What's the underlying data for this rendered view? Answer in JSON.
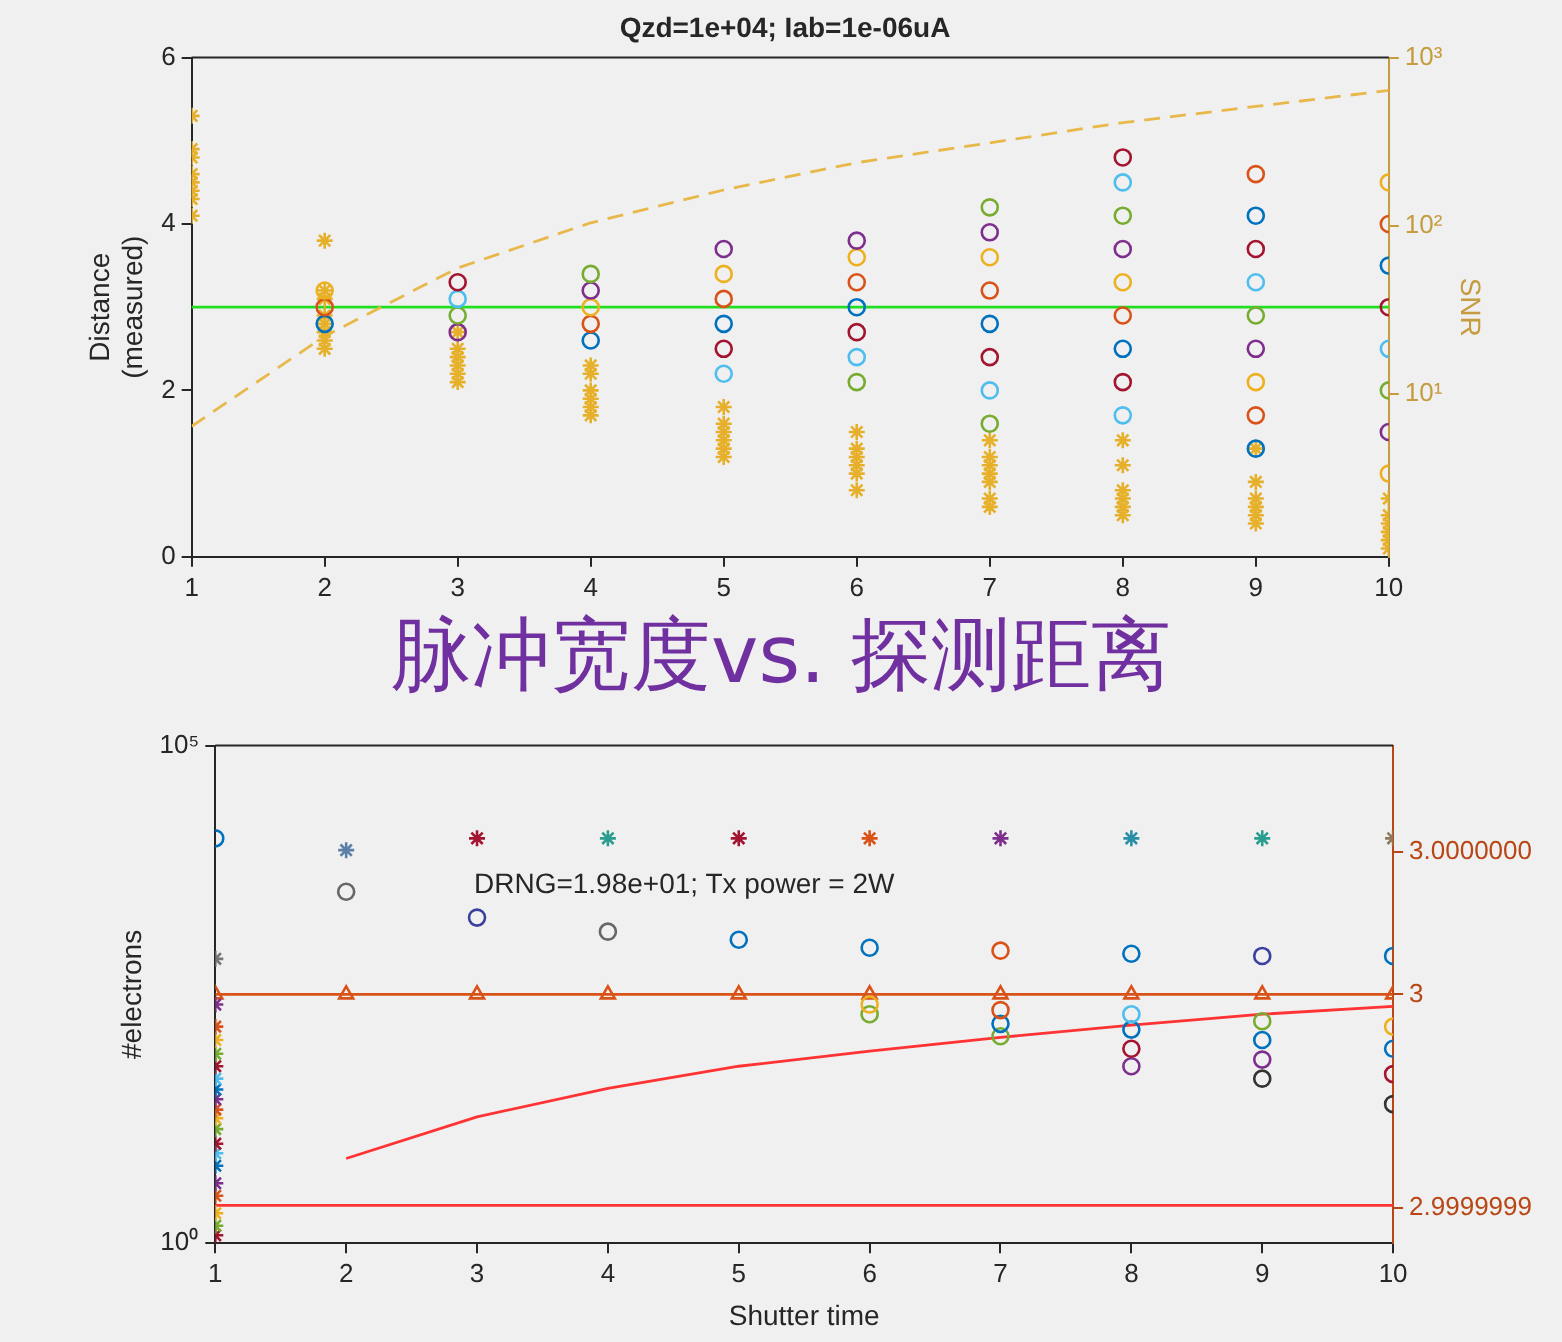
{
  "chart_data": [
    {
      "type": "scatter",
      "title": "Qzd=1e+04; Iab=1e-06uA",
      "ylabel": "Distance\n(measured)",
      "y2label": "SNR",
      "xlim": [
        1,
        10
      ],
      "xticks": [
        1,
        2,
        3,
        4,
        5,
        6,
        7,
        8,
        9,
        10
      ],
      "ylim": [
        0,
        6
      ],
      "yticks": [
        0,
        2,
        4,
        6
      ],
      "y2lim": [
        1.07,
        1000
      ],
      "y2ticks": [
        {
          "value": 10,
          "label": "10¹"
        },
        {
          "value": 100,
          "label": "10²"
        },
        {
          "value": 1000,
          "label": "10³"
        }
      ],
      "log": "y2",
      "ref_lines": [
        {
          "axis": "y",
          "value": 3,
          "color": "#22dd22"
        }
      ],
      "series": [
        {
          "type": "scatter",
          "marker": "circle",
          "x": [
            2,
            2,
            2,
            3,
            3,
            3,
            3,
            4,
            4,
            4,
            4,
            4,
            5,
            5,
            5,
            5,
            5,
            5,
            6,
            6,
            6,
            6,
            6,
            6,
            6,
            7,
            7,
            7,
            7,
            7,
            7,
            7,
            7,
            8,
            8,
            8,
            8,
            8,
            8,
            8,
            8,
            8,
            9,
            9,
            9,
            9,
            9,
            9,
            9,
            9,
            9,
            10,
            10,
            10,
            10,
            10,
            10,
            10,
            10
          ],
          "values": [
            2.8,
            3.0,
            3.2,
            2.7,
            2.9,
            3.1,
            3.3,
            2.6,
            2.8,
            3.0,
            3.2,
            3.4,
            2.2,
            2.5,
            2.8,
            3.1,
            3.4,
            3.7,
            2.1,
            2.4,
            2.7,
            3.0,
            3.3,
            3.6,
            3.8,
            1.6,
            2.0,
            2.4,
            2.8,
            3.2,
            3.6,
            3.9,
            4.2,
            1.7,
            2.1,
            2.5,
            2.9,
            3.3,
            3.7,
            4.1,
            4.5,
            4.8,
            1.3,
            1.7,
            2.1,
            2.5,
            2.9,
            3.3,
            3.7,
            4.1,
            4.6,
            1.0,
            1.5,
            2.0,
            2.5,
            3.0,
            3.5,
            4.0,
            4.5
          ],
          "colors": [
            "#0072bd",
            "#d95319",
            "#edb120",
            "#7e2f8e",
            "#77ac30",
            "#4dbeee",
            "#a2142f",
            "#0072bd",
            "#d95319",
            "#edb120",
            "#7e2f8e",
            "#77ac30",
            "#4dbeee",
            "#a2142f",
            "#0072bd",
            "#d95319",
            "#edb120",
            "#7e2f8e",
            "#77ac30",
            "#4dbeee",
            "#a2142f",
            "#0072bd",
            "#d95319",
            "#edb120",
            "#7e2f8e",
            "#77ac30",
            "#4dbeee",
            "#a2142f",
            "#0072bd",
            "#d95319",
            "#edb120",
            "#7e2f8e",
            "#77ac30",
            "#4dbeee",
            "#a2142f",
            "#0072bd",
            "#d95319",
            "#edb120",
            "#7e2f8e",
            "#77ac30",
            "#4dbeee",
            "#a2142f",
            "#0072bd",
            "#d95319",
            "#edb120",
            "#7e2f8e",
            "#77ac30",
            "#4dbeee",
            "#a2142f",
            "#0072bd",
            "#d95319",
            "#edb120",
            "#7e2f8e",
            "#77ac30",
            "#4dbeee",
            "#a2142f",
            "#0072bd",
            "#d95319",
            "#edb120"
          ]
        },
        {
          "type": "scatter",
          "marker": "cross",
          "color": "#e6b02a",
          "x": [
            1,
            1,
            1,
            1,
            1,
            1,
            1,
            1,
            2,
            2,
            2,
            2,
            2,
            2,
            2,
            2,
            3,
            3,
            3,
            3,
            3,
            3,
            4,
            4,
            4,
            4,
            4,
            4,
            5,
            5,
            5,
            5,
            5,
            5,
            6,
            6,
            6,
            6,
            6,
            6,
            7,
            7,
            7,
            7,
            7,
            7,
            7,
            8,
            8,
            8,
            8,
            8,
            8,
            9,
            9,
            9,
            9,
            9,
            9,
            10,
            10,
            10,
            10,
            10,
            10
          ],
          "values": [
            5.3,
            4.9,
            4.8,
            4.6,
            4.5,
            4.4,
            4.3,
            4.1,
            3.8,
            3.2,
            3.1,
            2.9,
            2.8,
            2.7,
            2.6,
            2.5,
            2.7,
            2.5,
            2.4,
            2.3,
            2.2,
            2.1,
            2.3,
            2.2,
            2.0,
            1.9,
            1.8,
            1.7,
            1.8,
            1.6,
            1.5,
            1.4,
            1.3,
            1.2,
            1.5,
            1.3,
            1.2,
            1.1,
            1.0,
            0.8,
            1.4,
            1.2,
            1.1,
            1.0,
            0.9,
            0.7,
            0.6,
            1.4,
            1.1,
            0.8,
            0.7,
            0.6,
            0.5,
            1.3,
            0.9,
            0.7,
            0.6,
            0.5,
            0.4,
            0.7,
            0.5,
            0.4,
            0.3,
            0.2,
            0.1
          ]
        },
        {
          "type": "line",
          "axis": "y2",
          "marker": "none",
          "line_style": "dashed",
          "color": "#e8b84a",
          "x": [
            1,
            2,
            3,
            4,
            5,
            6,
            7,
            8,
            9,
            10
          ],
          "values": [
            6.4,
            22,
            56,
            104,
            163,
            237,
            311,
            410,
            512,
            638
          ]
        }
      ]
    },
    {
      "type": "scatter",
      "title": "脉冲宽度vs. 探测距离",
      "xlabel": "Shutter time",
      "ylabel": "#electrons",
      "xlim": [
        1,
        10
      ],
      "xticks": [
        1,
        2,
        3,
        4,
        5,
        6,
        7,
        8,
        9,
        10
      ],
      "ylim": [
        1,
        100000
      ],
      "yticks": [
        {
          "value": 1,
          "label": "10⁰"
        },
        {
          "value": 100000,
          "label": "10⁵"
        }
      ],
      "log": "y",
      "y2lim": [
        2.99999993,
        3.00000007
      ],
      "y2ticks": [
        {
          "value": 2.99999994,
          "label": "2.9999999"
        },
        3,
        {
          "value": 3.00000004,
          "label": "3.0000000"
        }
      ],
      "annotations": [
        "DRNG=1.98e+01; Tx power = 2W"
      ],
      "ref_lines": [
        {
          "axis": "y",
          "value": 2.4,
          "color": "#ff3333"
        }
      ],
      "series": [
        {
          "type": "scatter",
          "marker": "circle",
          "x": [
            1,
            2,
            3,
            4,
            5,
            6,
            7,
            8,
            9,
            10
          ],
          "values": [
            11700,
            3400,
            1870,
            1350,
            1120,
            930,
            870,
            810,
            770,
            770
          ],
          "colors": [
            "#0072bd",
            "#666666",
            "#3b3f9e",
            "#666666",
            "#0072bd",
            "#0072bd",
            "#d95319",
            "#0072bd",
            "#3b3f9e",
            "#0072bd"
          ]
        },
        {
          "type": "scatter",
          "marker": "cross",
          "x": [
            1,
            2,
            3,
            4,
            5,
            6,
            7,
            8,
            9,
            10
          ],
          "values": [
            720,
            8900,
            11700,
            11700,
            11700,
            11700,
            11700,
            11700,
            11700,
            11700
          ],
          "colors": [
            "#777777",
            "#5b7fa6",
            "#a2142f",
            "#2a9d8f",
            "#a2142f",
            "#d95319",
            "#7e2f8e",
            "#2a8fa6",
            "#2a9d8f",
            "#8c7a5b"
          ]
        },
        {
          "type": "scatter",
          "marker": "cross",
          "x": [
            1,
            1,
            1,
            1,
            1,
            1,
            1,
            1,
            1,
            1,
            1,
            1,
            1,
            1,
            1,
            1,
            1,
            1,
            1
          ],
          "values": [
            1.2,
            1.5,
            2,
            3,
            4,
            6,
            8,
            10,
            14,
            18,
            22,
            28,
            35,
            45,
            60,
            80,
            110,
            150,
            250
          ],
          "colors": [
            "#a2142f",
            "#77ac30",
            "#edb120",
            "#d95319",
            "#7e2f8e",
            "#0072bd",
            "#4dbeee",
            "#a2142f",
            "#77ac30",
            "#edb120",
            "#d95319",
            "#7e2f8e",
            "#0072bd",
            "#4dbeee",
            "#a2142f",
            "#77ac30",
            "#edb120",
            "#d95319",
            "#7e2f8e"
          ]
        },
        {
          "type": "scatter",
          "marker": "circle",
          "x": [
            6,
            6,
            7,
            7,
            7,
            8,
            8,
            8,
            8,
            9,
            9,
            9,
            9,
            10,
            10,
            10,
            10
          ],
          "values": [
            200,
            250,
            120,
            160,
            220,
            60,
            90,
            140,
            200,
            45,
            70,
            110,
            170,
            25,
            50,
            90,
            150
          ],
          "colors": [
            "#77ac30",
            "#edb120",
            "#77ac30",
            "#0072bd",
            "#d95319",
            "#7e2f8e",
            "#a2142f",
            "#0072bd",
            "#4dbeee",
            "#333333",
            "#7e2f8e",
            "#0072bd",
            "#77ac30",
            "#333333",
            "#a2142f",
            "#0072bd",
            "#edb120"
          ]
        },
        {
          "type": "line",
          "axis": "y2",
          "marker": "triangle",
          "line_style": "solid",
          "color": "#d95319",
          "x": [
            1,
            2,
            3,
            4,
            5,
            6,
            7,
            8,
            9,
            10
          ],
          "values": [
            3,
            3,
            3,
            3,
            3,
            3,
            3,
            3,
            3,
            3
          ]
        },
        {
          "type": "line",
          "marker": "none",
          "line_style": "solid",
          "color": "#ff3333",
          "x": [
            2,
            3,
            4,
            5,
            6,
            7,
            8,
            9,
            10
          ],
          "values": [
            7.1,
            18.6,
            36,
            60,
            85,
            117,
            155,
            200,
            240
          ]
        }
      ]
    }
  ]
}
